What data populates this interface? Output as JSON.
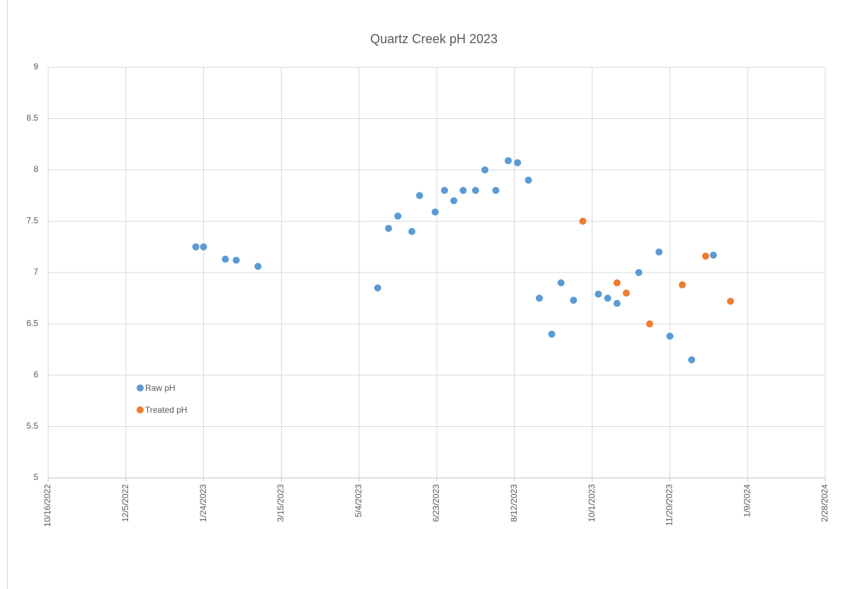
{
  "chart_data": {
    "type": "scatter",
    "title": "Quartz Creek pH 2023",
    "xlim": [
      "2022-10-16",
      "2024-02-28"
    ],
    "xticks": [
      {
        "value": "2022-10-16",
        "label": "10/16/2022"
      },
      {
        "value": "2022-12-05",
        "label": "12/5/2022"
      },
      {
        "value": "2023-01-24",
        "label": "1/24/2023"
      },
      {
        "value": "2023-03-15",
        "label": "3/15/2023"
      },
      {
        "value": "2023-05-04",
        "label": "5/4/2023"
      },
      {
        "value": "2023-06-23",
        "label": "6/23/2023"
      },
      {
        "value": "2023-08-12",
        "label": "8/12/2023"
      },
      {
        "value": "2023-10-01",
        "label": "10/1/2023"
      },
      {
        "value": "2023-11-20",
        "label": "11/20/2023"
      },
      {
        "value": "2024-01-09",
        "label": "1/9/2024"
      },
      {
        "value": "2024-02-28",
        "label": "2/28/2024"
      }
    ],
    "ylim": [
      5,
      9
    ],
    "yticks": [
      5,
      5.5,
      6,
      6.5,
      7,
      7.5,
      8,
      8.5,
      9
    ],
    "grid": true,
    "legend": "left",
    "series": [
      {
        "name": "Raw pH",
        "color": "#5b9bd5",
        "x": [
          "2023-01-19",
          "2023-01-24",
          "2023-02-07",
          "2023-02-14",
          "2023-02-28",
          "2023-05-16",
          "2023-05-23",
          "2023-05-29",
          "2023-06-07",
          "2023-06-12",
          "2023-06-22",
          "2023-06-28",
          "2023-07-04",
          "2023-07-10",
          "2023-07-18",
          "2023-07-24",
          "2023-07-31",
          "2023-08-08",
          "2023-08-14",
          "2023-08-21",
          "2023-08-28",
          "2023-09-05",
          "2023-09-11",
          "2023-09-19",
          "2023-10-05",
          "2023-10-11",
          "2023-10-17",
          "2023-10-31",
          "2023-11-13",
          "2023-11-20",
          "2023-12-04",
          "2023-12-18"
        ],
        "values": [
          7.25,
          7.25,
          7.13,
          7.12,
          7.06,
          6.85,
          7.43,
          7.55,
          7.4,
          7.75,
          7.59,
          7.8,
          7.7,
          7.8,
          7.8,
          8.0,
          7.8,
          8.09,
          8.07,
          7.9,
          6.75,
          6.4,
          6.9,
          6.73,
          6.79,
          6.75,
          6.7,
          7.0,
          7.2,
          6.38,
          6.15,
          7.17
        ]
      },
      {
        "name": "Treated pH",
        "color": "#ed7d31",
        "x": [
          "2023-09-25",
          "2023-10-17",
          "2023-10-23",
          "2023-11-07",
          "2023-11-28",
          "2023-12-13",
          "2023-12-29"
        ],
        "values": [
          7.5,
          6.9,
          6.8,
          6.5,
          6.88,
          7.16,
          6.72
        ]
      }
    ]
  }
}
